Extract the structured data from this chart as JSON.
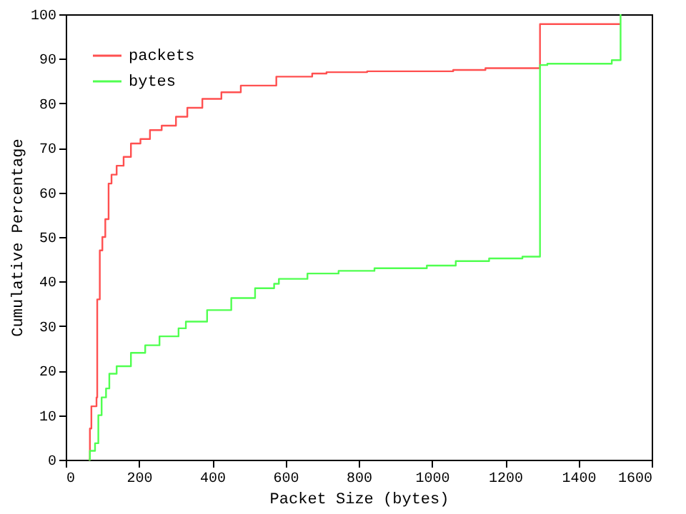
{
  "chart_data": {
    "type": "step",
    "xlabel": "Packet Size (bytes)",
    "ylabel": "Cumulative Percentage",
    "xlim": [
      0,
      1600
    ],
    "xticks": [
      0,
      200,
      400,
      600,
      800,
      1000,
      1200,
      1400,
      1600
    ],
    "ylim": [
      0,
      100
    ],
    "yticks": [
      0,
      10,
      20,
      30,
      40,
      50,
      60,
      70,
      80,
      90,
      100
    ],
    "grid": false,
    "legend": "top left",
    "marker": "none",
    "line_style": "solid",
    "series": [
      {
        "name": "packets",
        "color": "#ff5050",
        "x": [
          63,
          66,
          70,
          84,
          86,
          93,
          100,
          108,
          117,
          125,
          139,
          158,
          178,
          204,
          230,
          262,
          301,
          332,
          373,
          425,
          478,
          575,
          673,
          712,
          823,
          1058,
          1146,
          1295,
          1515
        ],
        "values": [
          0,
          7,
          12,
          14,
          36,
          47,
          50,
          54,
          62,
          64,
          66,
          68,
          71,
          72,
          74,
          75,
          77,
          79,
          81,
          82.5,
          84,
          86,
          86.7,
          87,
          87.2,
          87.5,
          87.9,
          97.8,
          97.8
        ]
      },
      {
        "name": "bytes",
        "color": "#50ff50",
        "x": [
          63,
          66,
          80,
          89,
          98,
          110,
          119,
          139,
          178,
          217,
          256,
          308,
          328,
          386,
          452,
          517,
          569,
          582,
          660,
          745,
          843,
          986,
          1065,
          1156,
          1247,
          1295,
          1315,
          1491,
          1515
        ],
        "values": [
          0,
          2,
          3.7,
          10,
          14,
          16,
          19.3,
          21,
          24,
          25.7,
          27.7,
          29.5,
          31,
          33.6,
          36.3,
          38.5,
          39.5,
          40.6,
          41.8,
          42.4,
          43,
          43.6,
          44.6,
          45.2,
          45.6,
          88.6,
          88.9,
          89.7,
          100
        ]
      }
    ]
  }
}
